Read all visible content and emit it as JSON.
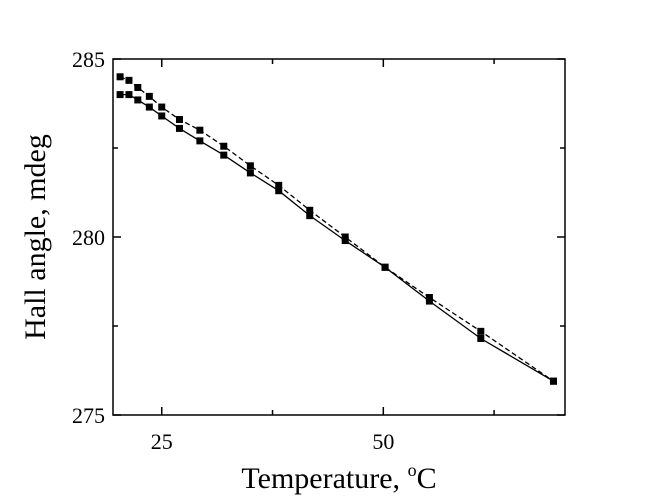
{
  "chart_data": {
    "type": "line",
    "title": "",
    "xlabel": "Temperature, ",
    "xlabel_unit_sup": "o",
    "xlabel_unit": "C",
    "ylabel": "Hall angle, mdeg",
    "xlim": [
      19.5,
      70.5
    ],
    "ylim": [
      275,
      285
    ],
    "x_ticks": [
      25,
      50
    ],
    "x_tick_labels": [
      "25",
      "50"
    ],
    "x_minor_ticks": [
      37.5,
      62.5
    ],
    "y_ticks": [
      275,
      280,
      285
    ],
    "y_tick_labels": [
      "275",
      "280",
      "285"
    ],
    "y_minor_ticks": [
      277.5,
      282.5
    ],
    "grid": false,
    "legend": "none",
    "marker": "square",
    "color": "#000000",
    "series": [
      {
        "line_style": "dashed",
        "points": [
          [
            20.3,
            284.5
          ],
          [
            21.3,
            284.4
          ],
          [
            22.3,
            284.2
          ],
          [
            23.6,
            283.95
          ],
          [
            25.0,
            283.65
          ],
          [
            27.0,
            283.3
          ],
          [
            29.3,
            283.0
          ],
          [
            32.0,
            282.55
          ],
          [
            35.0,
            282.0
          ],
          [
            38.2,
            281.45
          ],
          [
            41.7,
            280.75
          ],
          [
            45.7,
            280.0
          ],
          [
            50.2,
            279.15
          ],
          [
            55.2,
            278.3
          ],
          [
            61.0,
            277.35
          ],
          [
            69.2,
            275.95
          ]
        ]
      },
      {
        "line_style": "solid",
        "points": [
          [
            20.3,
            284.0
          ],
          [
            21.3,
            284.0
          ],
          [
            22.3,
            283.85
          ],
          [
            23.6,
            283.65
          ],
          [
            25.0,
            283.4
          ],
          [
            27.0,
            283.05
          ],
          [
            29.3,
            282.7
          ],
          [
            32.0,
            282.3
          ],
          [
            35.0,
            281.8
          ],
          [
            38.2,
            281.3
          ],
          [
            41.7,
            280.6
          ],
          [
            45.7,
            279.9
          ],
          [
            50.2,
            279.15
          ],
          [
            55.2,
            278.2
          ],
          [
            61.0,
            277.15
          ],
          [
            69.2,
            275.95
          ]
        ]
      }
    ]
  }
}
